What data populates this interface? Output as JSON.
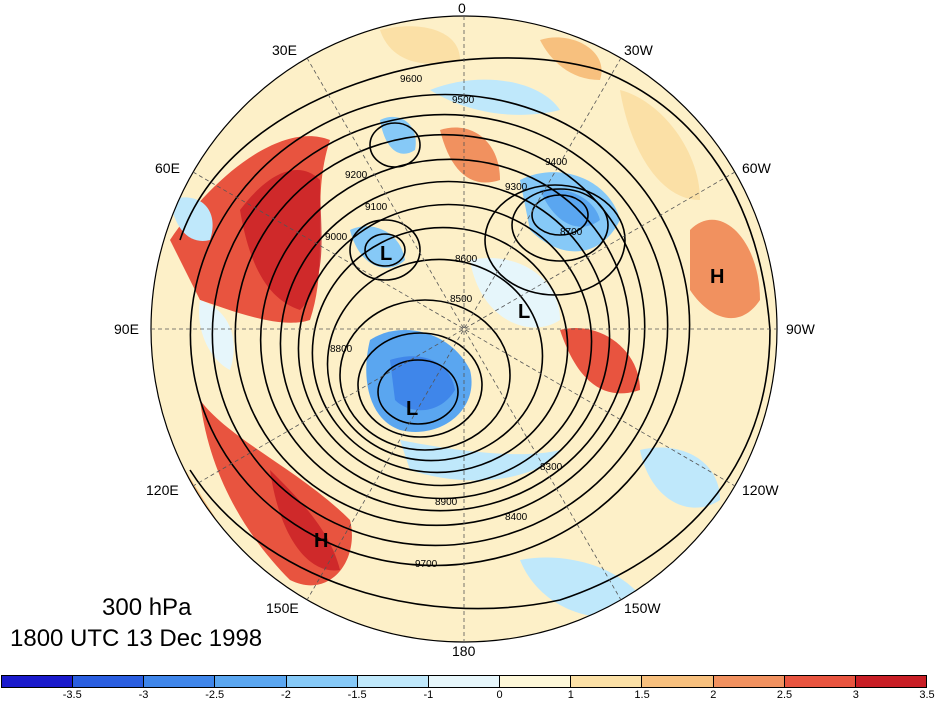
{
  "title": {
    "level": "300 hPa",
    "time": "1800 UTC 13 Dec 1998"
  },
  "longitude_labels": {
    "lon_0": "0",
    "lon_30w": "30W",
    "lon_60w": "60W",
    "lon_90w": "90W",
    "lon_120w": "120W",
    "lon_150w": "150W",
    "lon_180": "180",
    "lon_150e": "150E",
    "lon_120e": "120E",
    "lon_90e": "90E",
    "lon_60e": "60E",
    "lon_30e": "30E"
  },
  "contour_labels": [
    "9600",
    "9500",
    "9400",
    "9300",
    "9200",
    "9100",
    "9000",
    "8900",
    "8800",
    "8700",
    "8600",
    "8500",
    "8400",
    "8300",
    "9700"
  ],
  "pressure_centers": [
    {
      "type": "L",
      "label": "L"
    },
    {
      "type": "L",
      "label": "L"
    },
    {
      "type": "L",
      "label": "L"
    },
    {
      "type": "H",
      "label": "H"
    },
    {
      "type": "H",
      "label": "H"
    }
  ],
  "colorbar": {
    "ticks": [
      "-3.5",
      "-3",
      "-2.5",
      "-2",
      "-1.5",
      "-1",
      "0",
      "1",
      "1.5",
      "2",
      "2.5",
      "3",
      "3.5"
    ],
    "colors": [
      "#1a1acc",
      "#2a5ee0",
      "#3f86ea",
      "#5aa6f0",
      "#86c9f7",
      "#bfe8fb",
      "#e6f6fb",
      "#fdf7d8",
      "#fbe0a6",
      "#f7c07e",
      "#f1915f",
      "#e8543f",
      "#c81e25"
    ]
  }
}
